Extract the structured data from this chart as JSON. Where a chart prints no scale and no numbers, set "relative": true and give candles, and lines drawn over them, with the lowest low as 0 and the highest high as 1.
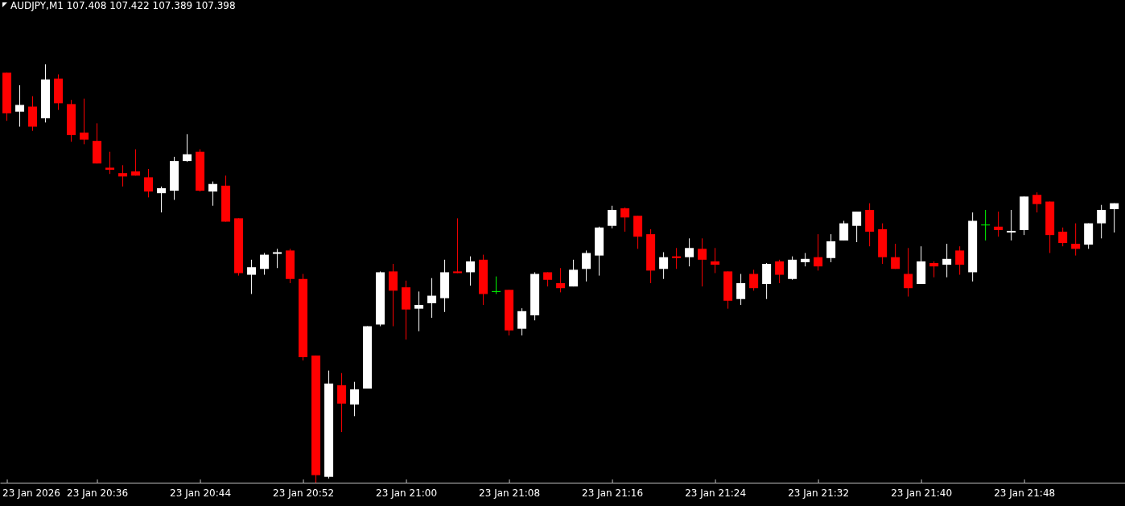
{
  "chart_data": {
    "type": "candlestick",
    "title": "AUDJPY,M1  107.408 107.422 107.389 107.398",
    "relative": true,
    "grid": false,
    "xlim": [
      "2026-01-23T20:28:28",
      "2026-01-23T21:55:50"
    ],
    "xticks": [
      {
        "value": "2026-01-23T20:29",
        "label": "23 Jan 2026"
      },
      {
        "value": "2026-01-23T20:36",
        "label": "23 Jan 20:36"
      },
      {
        "value": "2026-01-23T20:44",
        "label": "23 Jan 20:44"
      },
      {
        "value": "2026-01-23T20:52",
        "label": "23 Jan 20:52"
      },
      {
        "value": "2026-01-23T21:00",
        "label": "23 Jan 21:00"
      },
      {
        "value": "2026-01-23T21:08",
        "label": "23 Jan 21:08"
      },
      {
        "value": "2026-01-23T21:16",
        "label": "23 Jan 21:16"
      },
      {
        "value": "2026-01-23T21:24",
        "label": "23 Jan 21:24"
      },
      {
        "value": "2026-01-23T21:32",
        "label": "23 Jan 21:32"
      },
      {
        "value": "2026-01-23T21:40",
        "label": "23 Jan 21:40"
      },
      {
        "value": "2026-01-23T21:48",
        "label": "23 Jan 21:48"
      }
    ],
    "x": [
      "2026-01-23T20:29",
      "2026-01-23T20:30",
      "2026-01-23T20:31",
      "2026-01-23T20:32",
      "2026-01-23T20:33",
      "2026-01-23T20:34",
      "2026-01-23T20:35",
      "2026-01-23T20:36",
      "2026-01-23T20:37",
      "2026-01-23T20:38",
      "2026-01-23T20:39",
      "2026-01-23T20:40",
      "2026-01-23T20:41",
      "2026-01-23T20:42",
      "2026-01-23T20:43",
      "2026-01-23T20:44",
      "2026-01-23T20:45",
      "2026-01-23T20:46",
      "2026-01-23T20:47",
      "2026-01-23T20:48",
      "2026-01-23T20:49",
      "2026-01-23T20:50",
      "2026-01-23T20:51",
      "2026-01-23T20:52",
      "2026-01-23T20:53",
      "2026-01-23T20:54",
      "2026-01-23T20:55",
      "2026-01-23T20:56",
      "2026-01-23T20:57",
      "2026-01-23T20:58",
      "2026-01-23T20:59",
      "2026-01-23T21:00",
      "2026-01-23T21:01",
      "2026-01-23T21:02",
      "2026-01-23T21:03",
      "2026-01-23T21:04",
      "2026-01-23T21:05",
      "2026-01-23T21:06",
      "2026-01-23T21:07",
      "2026-01-23T21:08",
      "2026-01-23T21:09",
      "2026-01-23T21:10",
      "2026-01-23T21:11",
      "2026-01-23T21:12",
      "2026-01-23T21:13",
      "2026-01-23T21:14",
      "2026-01-23T21:15",
      "2026-01-23T21:16",
      "2026-01-23T21:17",
      "2026-01-23T21:18",
      "2026-01-23T21:19",
      "2026-01-23T21:20",
      "2026-01-23T21:21",
      "2026-01-23T21:22",
      "2026-01-23T21:23",
      "2026-01-23T21:24",
      "2026-01-23T21:25",
      "2026-01-23T21:26",
      "2026-01-23T21:27",
      "2026-01-23T21:28",
      "2026-01-23T21:29",
      "2026-01-23T21:30",
      "2026-01-23T21:31",
      "2026-01-23T21:32",
      "2026-01-23T21:33",
      "2026-01-23T21:34",
      "2026-01-23T21:35",
      "2026-01-23T21:36",
      "2026-01-23T21:37",
      "2026-01-23T21:38",
      "2026-01-23T21:39",
      "2026-01-23T21:40",
      "2026-01-23T21:41",
      "2026-01-23T21:42",
      "2026-01-23T21:43",
      "2026-01-23T21:44",
      "2026-01-23T21:45",
      "2026-01-23T21:46",
      "2026-01-23T21:47",
      "2026-01-23T21:48",
      "2026-01-23T21:49",
      "2026-01-23T21:50",
      "2026-01-23T21:51",
      "2026-01-23T21:52",
      "2026-01-23T21:53",
      "2026-01-23T21:54",
      "2026-01-23T21:55"
    ],
    "ohlc": [
      [
        0.98,
        0.98,
        0.865,
        0.883
      ],
      [
        0.887,
        0.95,
        0.851,
        0.903
      ],
      [
        0.899,
        0.924,
        0.841,
        0.851
      ],
      [
        0.871,
        1.0,
        0.861,
        0.964
      ],
      [
        0.966,
        0.976,
        0.891,
        0.907
      ],
      [
        0.905,
        0.915,
        0.815,
        0.831
      ],
      [
        0.837,
        0.918,
        0.809,
        0.82
      ],
      [
        0.817,
        0.859,
        0.763,
        0.763
      ],
      [
        0.753,
        0.791,
        0.738,
        0.748
      ],
      [
        0.74,
        0.759,
        0.708,
        0.732
      ],
      [
        0.744,
        0.797,
        0.734,
        0.734
      ],
      [
        0.73,
        0.75,
        0.682,
        0.696
      ],
      [
        0.692,
        0.708,
        0.646,
        0.704
      ],
      [
        0.698,
        0.779,
        0.676,
        0.769
      ],
      [
        0.769,
        0.833,
        0.767,
        0.785
      ],
      [
        0.791,
        0.797,
        0.696,
        0.698
      ],
      [
        0.696,
        0.72,
        0.662,
        0.714
      ],
      [
        0.71,
        0.734,
        0.624,
        0.624
      ],
      [
        0.632,
        0.632,
        0.495,
        0.501
      ],
      [
        0.497,
        0.533,
        0.451,
        0.515
      ],
      [
        0.511,
        0.549,
        0.497,
        0.545
      ],
      [
        0.547,
        0.559,
        0.513,
        0.551
      ],
      [
        0.555,
        0.559,
        0.477,
        0.487
      ],
      [
        0.487,
        0.499,
        0.292,
        0.3
      ],
      [
        0.304,
        0.304,
        0.0,
        0.018
      ],
      [
        0.014,
        0.268,
        0.01,
        0.237
      ],
      [
        0.233,
        0.262,
        0.121,
        0.189
      ],
      [
        0.187,
        0.241,
        0.159,
        0.223
      ],
      [
        0.225,
        0.374,
        0.225,
        0.374
      ],
      [
        0.378,
        0.505,
        0.374,
        0.503
      ],
      [
        0.505,
        0.523,
        0.374,
        0.459
      ],
      [
        0.467,
        0.483,
        0.342,
        0.414
      ],
      [
        0.416,
        0.457,
        0.362,
        0.425
      ],
      [
        0.429,
        0.489,
        0.394,
        0.447
      ],
      [
        0.441,
        0.533,
        0.408,
        0.503
      ],
      [
        0.505,
        0.632,
        0.501,
        0.501
      ],
      [
        0.503,
        0.541,
        0.471,
        0.529
      ],
      [
        0.533,
        0.545,
        0.425,
        0.451
      ],
      [
        0.457,
        0.493,
        0.451,
        0.457
      ],
      [
        0.461,
        0.461,
        0.352,
        0.364
      ],
      [
        0.368,
        0.417,
        0.352,
        0.41
      ],
      [
        0.4,
        0.503,
        0.388,
        0.499
      ],
      [
        0.503,
        0.503,
        0.469,
        0.485
      ],
      [
        0.477,
        0.513,
        0.455,
        0.465
      ],
      [
        0.469,
        0.533,
        0.469,
        0.509
      ],
      [
        0.511,
        0.555,
        0.481,
        0.549
      ],
      [
        0.543,
        0.612,
        0.495,
        0.61
      ],
      [
        0.614,
        0.662,
        0.608,
        0.652
      ],
      [
        0.656,
        0.658,
        0.6,
        0.634
      ],
      [
        0.638,
        0.638,
        0.559,
        0.588
      ],
      [
        0.594,
        0.606,
        0.477,
        0.507
      ],
      [
        0.511,
        0.551,
        0.487,
        0.539
      ],
      [
        0.541,
        0.561,
        0.511,
        0.537
      ],
      [
        0.539,
        0.584,
        0.517,
        0.561
      ],
      [
        0.559,
        0.584,
        0.469,
        0.533
      ],
      [
        0.529,
        0.561,
        0.501,
        0.521
      ],
      [
        0.505,
        0.505,
        0.416,
        0.435
      ],
      [
        0.439,
        0.499,
        0.425,
        0.477
      ],
      [
        0.499,
        0.509,
        0.459,
        0.465
      ],
      [
        0.475,
        0.525,
        0.439,
        0.523
      ],
      [
        0.529,
        0.533,
        0.477,
        0.497
      ],
      [
        0.487,
        0.541,
        0.485,
        0.533
      ],
      [
        0.527,
        0.549,
        0.517,
        0.535
      ],
      [
        0.539,
        0.594,
        0.507,
        0.517
      ],
      [
        0.537,
        0.594,
        0.527,
        0.577
      ],
      [
        0.579,
        0.626,
        0.579,
        0.62
      ],
      [
        0.614,
        0.648,
        0.575,
        0.648
      ],
      [
        0.652,
        0.668,
        0.565,
        0.6
      ],
      [
        0.606,
        0.62,
        0.523,
        0.539
      ],
      [
        0.539,
        0.571,
        0.511,
        0.511
      ],
      [
        0.499,
        0.561,
        0.445,
        0.465
      ],
      [
        0.475,
        0.565,
        0.475,
        0.529
      ],
      [
        0.525,
        0.529,
        0.491,
        0.517
      ],
      [
        0.521,
        0.571,
        0.491,
        0.535
      ],
      [
        0.555,
        0.565,
        0.497,
        0.521
      ],
      [
        0.503,
        0.646,
        0.481,
        0.626
      ],
      [
        0.616,
        0.652,
        0.579,
        0.616
      ],
      [
        0.612,
        0.648,
        0.588,
        0.604
      ],
      [
        0.598,
        0.652,
        0.579,
        0.602
      ],
      [
        0.604,
        0.684,
        0.592,
        0.684
      ],
      [
        0.688,
        0.694,
        0.646,
        0.666
      ],
      [
        0.672,
        0.672,
        0.549,
        0.592
      ],
      [
        0.6,
        0.61,
        0.565,
        0.573
      ],
      [
        0.571,
        0.62,
        0.543,
        0.559
      ],
      [
        0.569,
        0.62,
        0.559,
        0.62
      ],
      [
        0.62,
        0.664,
        0.584,
        0.652
      ],
      [
        0.654,
        0.668,
        0.598,
        0.668
      ]
    ],
    "colors": [
      "#ff0000",
      "#ffffff",
      "#ff0000",
      "#ffffff",
      "#ff0000",
      "#ff0000",
      "#ff0000",
      "#ff0000",
      "#ff0000",
      "#ff0000",
      "#ff0000",
      "#ff0000",
      "#ffffff",
      "#ffffff",
      "#ffffff",
      "#ff0000",
      "#ffffff",
      "#ff0000",
      "#ff0000",
      "#ffffff",
      "#ffffff",
      "#ffffff",
      "#ff0000",
      "#ff0000",
      "#ff0000",
      "#ffffff",
      "#ff0000",
      "#ffffff",
      "#ffffff",
      "#ffffff",
      "#ff0000",
      "#ff0000",
      "#ffffff",
      "#ffffff",
      "#ffffff",
      "#ff0000",
      "#ffffff",
      "#ff0000",
      "#00ff00",
      "#ff0000",
      "#ffffff",
      "#ffffff",
      "#ff0000",
      "#ff0000",
      "#ffffff",
      "#ffffff",
      "#ffffff",
      "#ffffff",
      "#ff0000",
      "#ff0000",
      "#ff0000",
      "#ffffff",
      "#ff0000",
      "#ffffff",
      "#ff0000",
      "#ff0000",
      "#ff0000",
      "#ffffff",
      "#ff0000",
      "#ffffff",
      "#ff0000",
      "#ffffff",
      "#ffffff",
      "#ff0000",
      "#ffffff",
      "#ffffff",
      "#ffffff",
      "#ff0000",
      "#ff0000",
      "#ff0000",
      "#ff0000",
      "#ffffff",
      "#ff0000",
      "#ffffff",
      "#ff0000",
      "#ffffff",
      "#00ff00",
      "#ff0000",
      "#ffffff",
      "#ffffff",
      "#ff0000",
      "#ff0000",
      "#ff0000",
      "#ff0000",
      "#ffffff",
      "#ffffff",
      "#ffffff"
    ]
  }
}
